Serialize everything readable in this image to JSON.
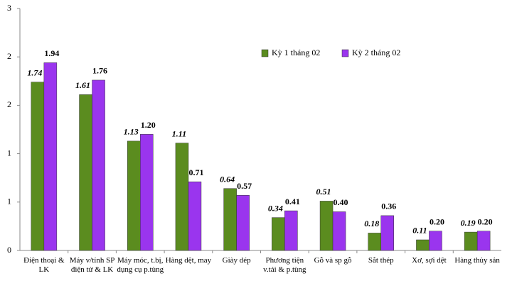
{
  "chart_data": {
    "type": "bar",
    "categories": [
      "Điện thoại & LK",
      "Máy v/tính SP điện tử & LK",
      "Máy móc, t.bị, dụng cụ p.tùng",
      "Hàng dệt, may",
      "Giày dép",
      "Phương tiện v.tải & p.tùng",
      "Gỗ và sp gỗ",
      "Sắt thép",
      "Xơ, sợi dệt",
      "Hàng thủy sản"
    ],
    "series": [
      {
        "name": "Kỳ 1 tháng 02",
        "color": "#5b8c1f",
        "values": [
          1.74,
          1.61,
          1.13,
          1.11,
          0.64,
          0.34,
          0.51,
          0.18,
          0.11,
          0.19
        ],
        "value_labels": [
          "1.74",
          "1.61",
          "1.13",
          "1.11",
          "0.64",
          "0.34",
          "0.51",
          "0.18",
          "0.11",
          "0.19"
        ]
      },
      {
        "name": "Kỳ 2 tháng 02",
        "color": "#9a35ee",
        "values": [
          1.94,
          1.76,
          1.2,
          0.71,
          0.57,
          0.41,
          0.4,
          0.36,
          0.2,
          0.2
        ],
        "value_labels": [
          "1.94",
          "1.76",
          "1.20",
          "0.71",
          "0.57",
          "0.41",
          "0.40",
          "0.36",
          "0.20",
          "0.20"
        ]
      }
    ],
    "ylim": [
      0,
      2.5
    ],
    "yticks": [
      0,
      {
        "value": 0.5,
        "label": "1"
      },
      1,
      {
        "value": 1.5,
        "label": "2"
      },
      2,
      {
        "value": 2.5,
        "label": "3"
      }
    ],
    "legend": "upper-right",
    "grid": false
  }
}
